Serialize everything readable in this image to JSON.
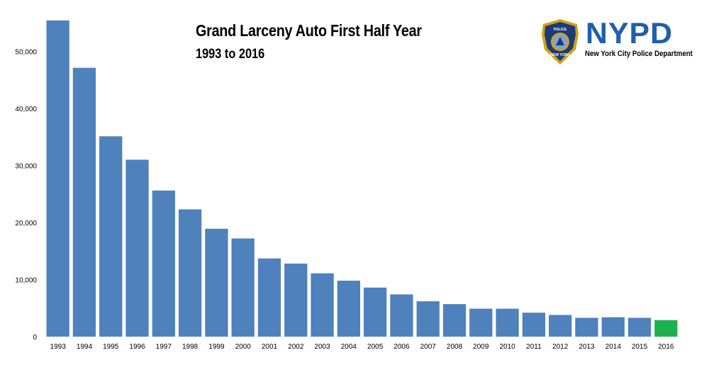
{
  "chart_data": {
    "type": "bar",
    "title": "Grand Larceny Auto First Half Year",
    "subtitle": "1993 to 2016",
    "xlabel": "",
    "ylabel": "",
    "categories": [
      "1993",
      "1994",
      "1995",
      "1996",
      "1997",
      "1998",
      "1999",
      "2000",
      "2001",
      "2002",
      "2003",
      "2004",
      "2005",
      "2006",
      "2007",
      "2008",
      "2009",
      "2010",
      "2011",
      "2012",
      "2013",
      "2014",
      "2015",
      "2016"
    ],
    "values": [
      55400,
      47100,
      35100,
      31000,
      25600,
      22300,
      18900,
      17200,
      13700,
      12800,
      11100,
      9800,
      8600,
      7400,
      6200,
      5700,
      4900,
      4900,
      4200,
      3800,
      3300,
      3400,
      3300,
      2900
    ],
    "highlight_category": "2016",
    "ylim": [
      0,
      56000
    ],
    "yticks": [
      0,
      10000,
      20000,
      30000,
      40000,
      50000
    ],
    "ytick_labels": [
      "0",
      "10,000",
      "20,000",
      "30,000",
      "40,000",
      "50,000"
    ],
    "grid": false,
    "legend": "none",
    "colors": {
      "bar": "#4f81bd",
      "highlight": "#1fb04f"
    }
  },
  "logo": {
    "wordmark": "NYPD",
    "caption": "New York City Police Department",
    "badge_top_text": "POLICE DEPARTMENT",
    "badge_bottom_text": "CITY OF NEW YORK",
    "colors": {
      "wordmark": "#1f5fae",
      "badge_fill": "#1a3c78",
      "badge_trim": "#d4a017"
    }
  }
}
